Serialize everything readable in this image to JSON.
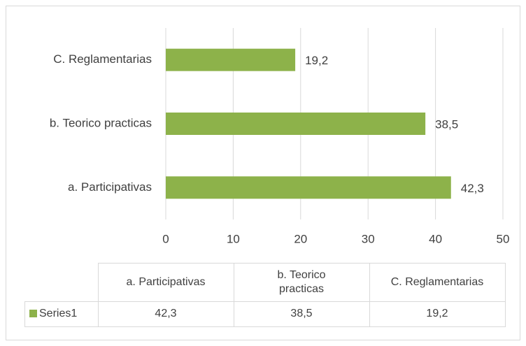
{
  "chart_data": {
    "type": "bar",
    "orientation": "horizontal",
    "categories": [
      "a. Participativas",
      "b. Teorico practicas",
      "C. Reglamentarias"
    ],
    "series": [
      {
        "name": "Series1",
        "color": "#8db24a",
        "values": [
          42.3,
          38.5,
          19.2
        ],
        "value_labels": [
          "42,3",
          "38,5",
          "19,2"
        ]
      }
    ],
    "xlim": [
      0,
      50
    ],
    "xticks": [
      0,
      10,
      20,
      30,
      40,
      50
    ],
    "grid": true,
    "data_table": true
  }
}
